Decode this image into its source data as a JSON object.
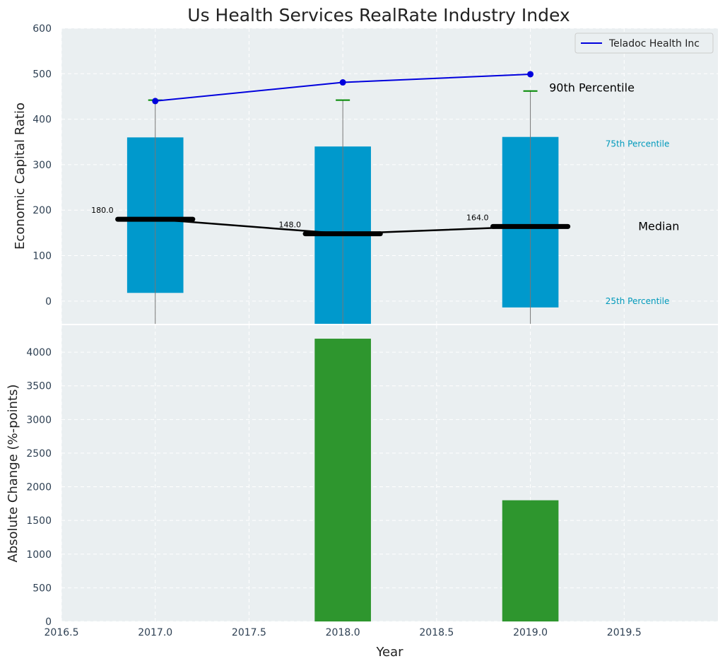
{
  "title": "Us Health Services RealRate Industry Index",
  "colors": {
    "plot_bg": "#eaeff1",
    "grid": "#ffffff",
    "box": "#0099cc",
    "median": "#000000",
    "company": "#0000dd",
    "p90": "#008800",
    "change_bar": "#2e962e",
    "axis_text": "#2e4053",
    "percentile_text": "#0099bb"
  },
  "chart_data": [
    {
      "type": "box",
      "ylabel": "Economic Capital Ratio",
      "ylim": [
        -50,
        600
      ],
      "yticks": [
        0,
        100,
        200,
        300,
        400,
        500,
        600
      ],
      "x": [
        2017,
        2018,
        2019
      ],
      "p25": [
        18,
        -50,
        -14
      ],
      "p75": [
        360,
        340,
        361
      ],
      "p90": [
        442,
        442,
        462
      ],
      "median": [
        180,
        148,
        164
      ],
      "median_labels": [
        "180.0",
        "148.0",
        "164.0"
      ],
      "series": [
        {
          "name": "Teladoc Health Inc",
          "values": [
            440,
            481,
            499
          ]
        }
      ],
      "annotations": {
        "p90": "90th Percentile",
        "p75": "75th Percentile",
        "median": "Median",
        "p25": "25th Percentile"
      },
      "legend": "top-right",
      "grid": true
    },
    {
      "type": "bar",
      "xlabel": "Year",
      "ylabel": "Absolute Change (%-points)",
      "x": [
        2018,
        2019
      ],
      "values": [
        4200,
        1800
      ],
      "xlim": [
        2016.5,
        2020
      ],
      "xticks": [
        2016.5,
        2017.0,
        2017.5,
        2018.0,
        2018.5,
        2019.0,
        2019.5
      ],
      "xtick_labels": [
        "2016.5",
        "2017.0",
        "2017.5",
        "2018.0",
        "2018.5",
        "2019.0",
        "2019.5"
      ],
      "ylim": [
        0,
        4400
      ],
      "yticks": [
        0,
        500,
        1000,
        1500,
        2000,
        2500,
        3000,
        3500,
        4000
      ],
      "grid": true
    }
  ]
}
